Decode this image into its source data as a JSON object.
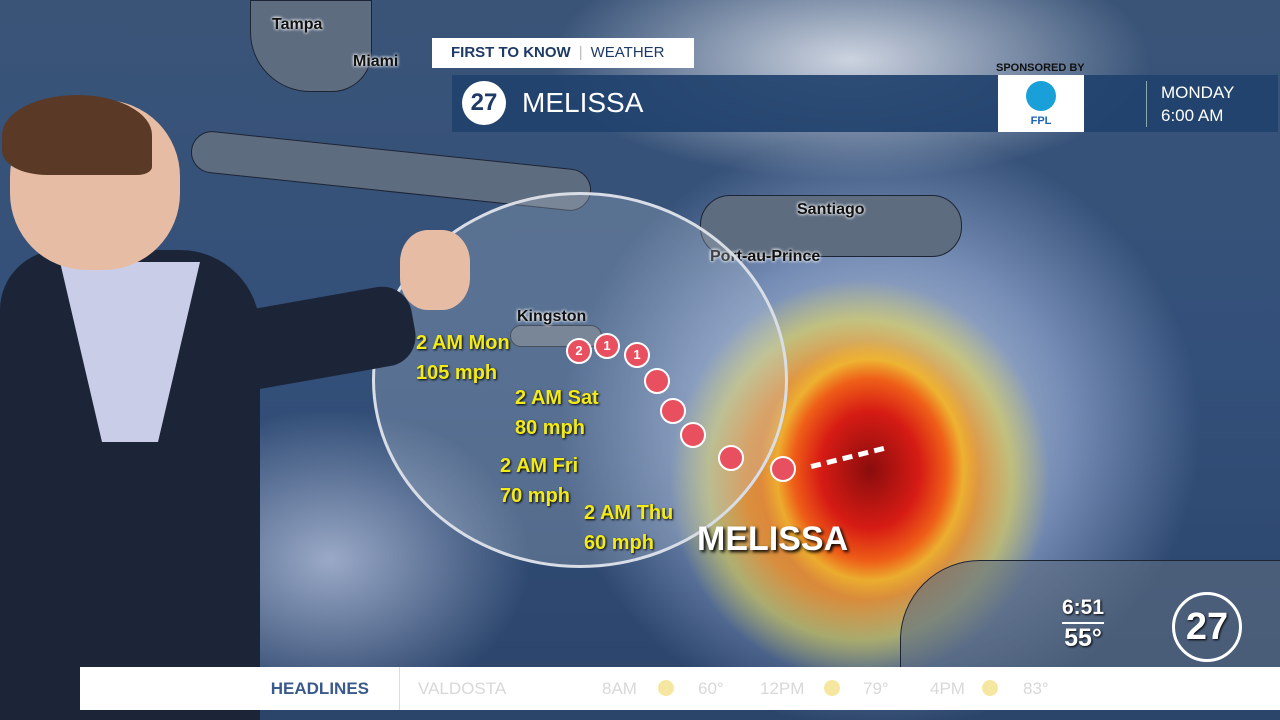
{
  "header": {
    "brand_left": "FIRST TO KNOW",
    "brand_right": "WEATHER",
    "title": "MELISSA",
    "station_logo": "27",
    "sponsored_by": "SPONSORED BY",
    "sponsor": "FPL",
    "day": "MONDAY",
    "time": "6:00 AM"
  },
  "map": {
    "places": [
      "Tampa",
      "Miami",
      "Santiago",
      "Port-au-Prince",
      "Kingston"
    ],
    "storm_name": "MELISSA",
    "track": [
      {
        "time": "2 AM Mon",
        "wind": "105 mph"
      },
      {
        "time": "2 AM Sat",
        "wind": "80 mph"
      },
      {
        "time": "2 AM Fri",
        "wind": "70 mph"
      },
      {
        "time": "2 AM Thu",
        "wind": "60 mph"
      }
    ],
    "storm_categories": [
      "2",
      "1",
      "1"
    ],
    "colors": {
      "track_text": "#f3ea16",
      "storm_marker": "#e85060"
    }
  },
  "corner": {
    "clock": "6:51",
    "temp": "55°",
    "logo": "27"
  },
  "ticker": {
    "section": "HEADLINES",
    "city": "VALDOSTA",
    "forecast": [
      {
        "time": "8AM",
        "icon": "sun-icon",
        "temp": "60°"
      },
      {
        "time": "12PM",
        "icon": "sun-icon",
        "temp": "79°"
      },
      {
        "time": "4PM",
        "icon": "sun-icon",
        "temp": "83°"
      }
    ]
  }
}
